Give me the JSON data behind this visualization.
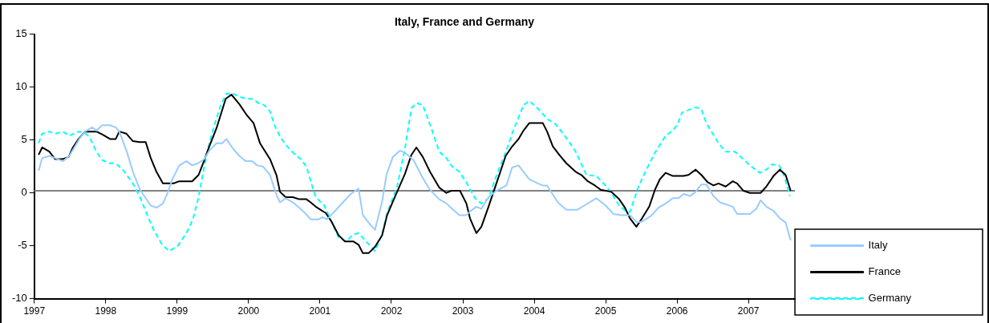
{
  "chart_data": {
    "type": "line",
    "title": "Italy, France and Germany",
    "xlim": [
      1997,
      2007.65
    ],
    "xticks": [
      1997,
      1998,
      1999,
      2000,
      2001,
      2002,
      2003,
      2004,
      2005,
      2006,
      2007
    ],
    "ylim": [
      -10,
      15
    ],
    "yticks": [
      -10,
      -5,
      0,
      5,
      10,
      15
    ],
    "grid": false,
    "legend": "right",
    "marker": "none",
    "ref_lines": [
      {
        "axis": "y",
        "value": 0.2,
        "color": "#808080"
      }
    ],
    "series": [
      {
        "name": "Italy",
        "color": "#99ccff",
        "line_style": "solid",
        "x": [
          1997.06,
          1997.11,
          1997.21,
          1997.29,
          1997.4,
          1997.49,
          1997.56,
          1997.64,
          1997.71,
          1997.81,
          1997.87,
          1997.95,
          1998.06,
          1998.14,
          1998.19,
          1998.29,
          1998.38,
          1998.48,
          1998.56,
          1998.63,
          1998.71,
          1998.8,
          1998.86,
          1998.94,
          1999.03,
          1999.13,
          1999.21,
          1999.29,
          1999.38,
          1999.45,
          1999.55,
          1999.63,
          1999.69,
          1999.78,
          1999.87,
          1999.96,
          2000.05,
          2000.12,
          2000.2,
          2000.3,
          2000.39,
          2000.44,
          2000.52,
          2000.62,
          2000.71,
          2000.79,
          2000.87,
          2000.98,
          2001.03,
          2001.1,
          2001.28,
          2001.43,
          2001.54,
          2001.6,
          2001.68,
          2001.77,
          2001.87,
          2001.93,
          2002.02,
          2002.12,
          2002.19,
          2002.31,
          2002.44,
          2002.54,
          2002.67,
          2002.77,
          2002.85,
          2002.95,
          2003.05,
          2003.11,
          2003.19,
          2003.26,
          2003.36,
          2003.47,
          2003.61,
          2003.69,
          2003.78,
          2003.93,
          2004.05,
          2004.12,
          2004.18,
          2004.33,
          2004.45,
          2004.6,
          2004.7,
          2004.87,
          2005,
          2005.11,
          2005.23,
          2005.34,
          2005.44,
          2005.51,
          2005.63,
          2005.74,
          2005.84,
          2005.94,
          2006.02,
          2006.09,
          2006.18,
          2006.26,
          2006.34,
          2006.41,
          2006.51,
          2006.6,
          2006.78,
          2006.84,
          2007.02,
          2007.11,
          2007.17,
          2007.25,
          2007.35,
          2007.44,
          2007.52,
          2007.59
        ],
        "values": [
          2.1,
          3.3,
          3.5,
          3.3,
          3.0,
          3.5,
          4.3,
          5.2,
          5.8,
          6.2,
          5.9,
          6.4,
          6.4,
          6.2,
          5.8,
          4.0,
          2.0,
          0.3,
          -0.5,
          -1.2,
          -1.4,
          -1.0,
          -0.1,
          1.4,
          2.6,
          3.0,
          2.6,
          2.8,
          3.2,
          4.0,
          4.7,
          4.7,
          5.1,
          4.2,
          3.5,
          3.0,
          3.0,
          2.6,
          2.5,
          1.7,
          -0.2,
          -0.9,
          -0.5,
          -0.9,
          -1.4,
          -1.9,
          -2.5,
          -2.5,
          -2.3,
          -2.5,
          -1.2,
          -0.1,
          0.4,
          -2.1,
          -2.8,
          -3.5,
          -0.8,
          1.7,
          3.4,
          4.0,
          3.8,
          3.1,
          1.4,
          0.3,
          -0.6,
          -1.0,
          -1.5,
          -2.1,
          -2.1,
          -1.7,
          -1.3,
          -1.5,
          -0.4,
          0.2,
          0.7,
          2.4,
          2.6,
          1.3,
          0.9,
          0.7,
          0.7,
          -0.9,
          -1.6,
          -1.6,
          -1.2,
          -0.5,
          -1.2,
          -2.0,
          -2.1,
          -2.1,
          -2.8,
          -2.7,
          -2.2,
          -1.4,
          -1.0,
          -0.5,
          -0.5,
          -0.1,
          -0.3,
          0.1,
          0.8,
          0.8,
          -0.3,
          -0.9,
          -1.3,
          -2.0,
          -2.0,
          -1.5,
          -0.7,
          -1.3,
          -1.7,
          -2.4,
          -2.8,
          -4.5
        ]
      },
      {
        "name": "France",
        "color": "#000000",
        "line_style": "solid",
        "x": [
          1997.06,
          1997.11,
          1997.21,
          1997.29,
          1997.4,
          1997.48,
          1997.54,
          1997.62,
          1997.71,
          1997.87,
          1997.96,
          1998.06,
          1998.14,
          1998.19,
          1998.29,
          1998.38,
          1998.47,
          1998.56,
          1998.63,
          1998.71,
          1998.8,
          1998.95,
          1999.03,
          1999.21,
          1999.3,
          1999.38,
          1999.45,
          1999.55,
          1999.68,
          1999.76,
          1999.87,
          1999.97,
          2000.07,
          2000.16,
          2000.3,
          2000.39,
          2000.44,
          2000.52,
          2000.62,
          2000.71,
          2000.81,
          2000.87,
          2000.94,
          2001.01,
          2001.08,
          2001.16,
          2001.26,
          2001.35,
          2001.47,
          2001.54,
          2001.6,
          2001.68,
          2001.77,
          2001.87,
          2001.94,
          2002.06,
          2002.19,
          2002.28,
          2002.35,
          2002.44,
          2002.54,
          2002.67,
          2002.77,
          2002.84,
          2002.96,
          2003.05,
          2003.1,
          2003.19,
          2003.26,
          2003.36,
          2003.47,
          2003.6,
          2003.68,
          2003.78,
          2003.85,
          2003.93,
          2004.12,
          2004.18,
          2004.26,
          2004.35,
          2004.45,
          2004.58,
          2004.66,
          2004.75,
          2004.85,
          2004.93,
          2005.08,
          2005.19,
          2005.27,
          2005.34,
          2005.43,
          2005.51,
          2005.61,
          2005.69,
          2005.76,
          2005.84,
          2005.94,
          2006.09,
          2006.16,
          2006.26,
          2006.34,
          2006.43,
          2006.51,
          2006.58,
          2006.68,
          2006.78,
          2006.84,
          2006.93,
          2007.02,
          2007.17,
          2007.25,
          2007.35,
          2007.44,
          2007.52,
          2007.59
        ],
        "values": [
          3.6,
          4.3,
          3.9,
          3.2,
          3.2,
          3.4,
          4.3,
          5.1,
          5.8,
          5.8,
          5.5,
          5.1,
          5.1,
          5.8,
          5.6,
          4.9,
          4.8,
          4.8,
          3.3,
          2.0,
          0.9,
          0.9,
          1.1,
          1.1,
          1.7,
          3.1,
          4.4,
          6.1,
          8.9,
          9.3,
          8.4,
          7.4,
          6.6,
          4.7,
          3.2,
          1.7,
          0.1,
          -0.4,
          -0.4,
          -0.6,
          -0.6,
          -0.9,
          -1.3,
          -1.6,
          -1.9,
          -2.7,
          -4.0,
          -4.6,
          -4.6,
          -4.9,
          -5.7,
          -5.7,
          -5.1,
          -4.0,
          -2.1,
          -0.2,
          1.8,
          3.6,
          4.3,
          3.4,
          2.0,
          0.5,
          0.0,
          0.2,
          0.2,
          -1.0,
          -2.4,
          -3.8,
          -3.2,
          -1.3,
          0.9,
          3.5,
          4.3,
          5.1,
          5.9,
          6.6,
          6.6,
          5.8,
          4.4,
          3.6,
          2.8,
          2.0,
          1.7,
          1.1,
          0.7,
          0.3,
          0.1,
          -0.6,
          -1.4,
          -2.4,
          -3.2,
          -2.4,
          -1.3,
          0.3,
          1.3,
          1.9,
          1.6,
          1.6,
          1.7,
          2.2,
          1.7,
          1.0,
          0.7,
          0.9,
          0.6,
          1.1,
          0.9,
          0.2,
          0.0,
          0.0,
          0.6,
          1.6,
          2.2,
          1.7,
          0.2
        ]
      },
      {
        "name": "Germany",
        "color": "#00ffff",
        "line_style": "dashed",
        "x": [
          1997.06,
          1997.11,
          1997.21,
          1997.29,
          1997.4,
          1997.49,
          1997.62,
          1997.7,
          1997.77,
          1997.87,
          1997.95,
          1998.06,
          1998.14,
          1998.25,
          1998.38,
          1998.48,
          1998.57,
          1998.67,
          1998.79,
          1998.89,
          1999.01,
          1999.13,
          1999.22,
          1999.3,
          1999.38,
          1999.45,
          1999.53,
          1999.61,
          1999.69,
          1999.78,
          1999.87,
          1999.97,
          2000.05,
          2000.14,
          2000.22,
          2000.3,
          2000.37,
          2000.45,
          2000.54,
          2000.64,
          2000.73,
          2000.81,
          2000.87,
          2000.94,
          2001.06,
          2001.18,
          2001.26,
          2001.37,
          2001.45,
          2001.54,
          2001.66,
          2001.77,
          2001.87,
          2001.94,
          2002.08,
          2002.19,
          2002.28,
          2002.35,
          2002.44,
          2002.56,
          2002.67,
          2002.77,
          2002.85,
          2002.95,
          2003.05,
          2003.17,
          2003.26,
          2003.36,
          2003.49,
          2003.61,
          2003.7,
          2003.85,
          2003.93,
          2004.05,
          2004.18,
          2004.3,
          2004.45,
          2004.58,
          2004.73,
          2004.87,
          2005,
          2005.09,
          2005.19,
          2005.28,
          2005.34,
          2005.46,
          2005.57,
          2005.69,
          2005.84,
          2005.94,
          2006,
          2006.07,
          2006.26,
          2006.34,
          2006.41,
          2006.49,
          2006.58,
          2006.68,
          2006.81,
          2006.91,
          2007.02,
          2007.16,
          2007.25,
          2007.33,
          2007.43,
          2007.5,
          2007.58
        ],
        "values": [
          4.7,
          5.6,
          5.8,
          5.6,
          5.8,
          5.4,
          5.8,
          5.7,
          5.3,
          3.9,
          3.1,
          2.8,
          2.8,
          2.1,
          0.9,
          -0.4,
          -1.9,
          -3.5,
          -4.9,
          -5.5,
          -5.0,
          -3.8,
          -2.5,
          -0.4,
          2.5,
          4.7,
          6.6,
          8.3,
          9.4,
          9.4,
          9.1,
          8.9,
          8.9,
          8.5,
          8.3,
          7.7,
          6.3,
          5.2,
          4.4,
          3.7,
          3.2,
          2.5,
          1.1,
          -0.4,
          -1.2,
          -3.0,
          -4.2,
          -4.6,
          -4.0,
          -3.8,
          -4.7,
          -5.5,
          -3.9,
          -1.9,
          0.6,
          4.2,
          8.0,
          8.5,
          8.3,
          6.1,
          3.9,
          3.3,
          2.5,
          2.0,
          1.0,
          -0.5,
          -1.0,
          -0.5,
          2.0,
          4.0,
          5.8,
          8.3,
          8.7,
          8.0,
          7.0,
          6.5,
          5.2,
          3.9,
          1.7,
          1.6,
          0.7,
          -0.1,
          -1.2,
          -1.7,
          -1.8,
          0.6,
          2.2,
          3.8,
          5.4,
          5.9,
          6.4,
          7.6,
          8.1,
          7.9,
          6.6,
          5.7,
          4.7,
          3.9,
          3.9,
          3.3,
          2.6,
          1.9,
          2.2,
          2.7,
          2.6,
          1.6,
          -0.3
        ]
      }
    ]
  }
}
